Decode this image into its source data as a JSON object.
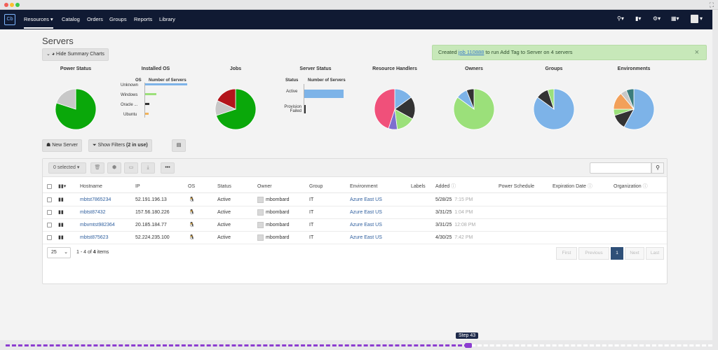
{
  "nav": {
    "items": [
      {
        "label": "Resources ▾"
      },
      {
        "label": "Catalog"
      },
      {
        "label": "Orders"
      },
      {
        "label": "Groups"
      },
      {
        "label": "Reports"
      },
      {
        "label": "Library"
      }
    ],
    "right_icons": [
      "search-icon",
      "bookmark-icon",
      "gear-icon",
      "apps-icon",
      "user-icon"
    ]
  },
  "page": {
    "title": "Servers"
  },
  "summary_btn": {
    "label": "Hide Summary Charts"
  },
  "toast": {
    "prefix": "Created ",
    "link": "job 110888",
    "suffix": " to run Add Tag to Server on 4 servers",
    "close": "×"
  },
  "charts": {
    "power_status": {
      "title": "Power Status"
    },
    "installed_os": {
      "title": "Installed OS",
      "col1": "OS",
      "col2": "Number of Servers",
      "rows": [
        "Unknown",
        "Windows",
        "Oracle ...",
        "Ubuntu"
      ]
    },
    "jobs": {
      "title": "Jobs"
    },
    "server_status": {
      "title": "Server Status",
      "col1": "Status",
      "col2": "Number of Servers",
      "rows": [
        "Active",
        "Provision Failed"
      ]
    },
    "resource_handlers": {
      "title": "Resource Handlers"
    },
    "owners": {
      "title": "Owners"
    },
    "groups": {
      "title": "Groups"
    },
    "environments": {
      "title": "Environments"
    }
  },
  "chart_data": [
    {
      "type": "pie",
      "title": "Power Status",
      "colors": [
        "#0aa80a",
        "#c8c8c8"
      ],
      "values": [
        80,
        20
      ]
    },
    {
      "type": "bar",
      "title": "Installed OS",
      "categories": [
        "Unknown",
        "Windows",
        "Oracle ...",
        "Ubuntu"
      ],
      "values": [
        60,
        16,
        6,
        5
      ],
      "colors": [
        "#7db3e8",
        "#9be07a",
        "#333",
        "#f2b35a"
      ]
    },
    {
      "type": "pie",
      "title": "Jobs",
      "colors": [
        "#0aa80a",
        "#c8c8c8",
        "#b3141b"
      ],
      "values": [
        70,
        12,
        18
      ]
    },
    {
      "type": "bar",
      "title": "Server Status",
      "categories": [
        "Active",
        "Provision Failed"
      ],
      "values": [
        56,
        1
      ],
      "colors": [
        "#7db3e8",
        "#333"
      ]
    },
    {
      "type": "pie",
      "title": "Resource Handlers",
      "colors": [
        "#7db3e8",
        "#333",
        "#9be07a",
        "#7d6fd0",
        "#f0507a"
      ],
      "values": [
        15,
        18,
        15,
        7,
        45
      ]
    },
    {
      "type": "pie",
      "title": "Owners",
      "colors": [
        "#9be07a",
        "#7db3e8",
        "#333"
      ],
      "values": [
        85,
        9,
        6
      ]
    },
    {
      "type": "pie",
      "title": "Groups",
      "colors": [
        "#7db3e8",
        "#333",
        "#9be07a"
      ],
      "values": [
        85,
        10,
        5
      ]
    },
    {
      "type": "pie",
      "title": "Environments",
      "colors": [
        "#7db3e8",
        "#333",
        "#9be07a",
        "#f2a05a",
        "#c8c8c8",
        "#3b7d7d"
      ],
      "values": [
        58,
        12,
        5,
        14,
        5,
        6
      ]
    }
  ],
  "actions": {
    "new_server": "New Server",
    "show_filters": "Show Filters",
    "filters_count": "(2 in use)"
  },
  "table": {
    "selected_label": "0 selected ▾",
    "headers": [
      "Hostname",
      "IP",
      "OS",
      "Status",
      "Owner",
      "Group",
      "Environment",
      "Labels",
      "Added",
      "Power Schedule",
      "Expiration Date",
      "Organization"
    ],
    "rows": [
      {
        "hostname": "mbtst7865234",
        "ip": "52.191.196.13",
        "status": "Active",
        "owner": "mbombard",
        "group": "IT",
        "env": "Azure East US",
        "added_date": "5/28/25",
        "added_time": "7:15 PM"
      },
      {
        "hostname": "mbtst87432",
        "ip": "157.56.180.226",
        "status": "Active",
        "owner": "mbombard",
        "group": "IT",
        "env": "Azure East US",
        "added_date": "3/31/25",
        "added_time": "1:04 PM"
      },
      {
        "hostname": "mbvmtst982364",
        "ip": "20.185.184.77",
        "status": "Active",
        "owner": "mbombard",
        "group": "IT",
        "env": "Azure East US",
        "added_date": "3/31/25",
        "added_time": "12:08 PM"
      },
      {
        "hostname": "mbtst875623",
        "ip": "52.224.235.100",
        "status": "Active",
        "owner": "mbombard",
        "group": "IT",
        "env": "Azure East US",
        "added_date": "4/30/25",
        "added_time": "7:42 PM"
      }
    ]
  },
  "pagination": {
    "page_size": "25",
    "info_pre": "1 - 4 of ",
    "info_total": "4",
    "info_post": " items",
    "first": "First",
    "prev": "Previous",
    "current": "1",
    "next": "Next",
    "last": "Last"
  },
  "step": {
    "label": "Step 43"
  }
}
